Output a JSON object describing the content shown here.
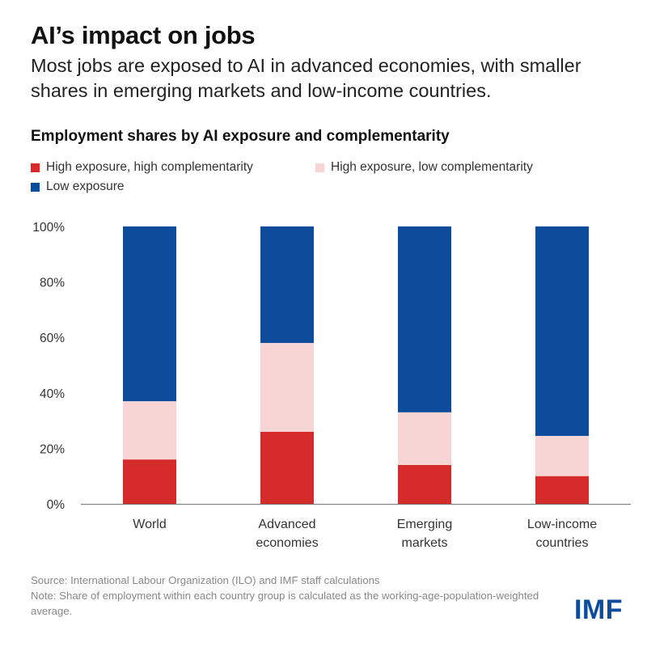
{
  "title": "AI’s impact on jobs",
  "subtitle": "Most jobs are exposed to AI in advanced economies, with smaller shares in emerging markets and low-income countries.",
  "source": "Source: International Labour Organization (ILO) and IMF staff calculations",
  "note": "Note: Share of employment within each country group is calculated as the working-age-population-weighted average.",
  "logo": "IMF",
  "chart_data": {
    "type": "bar",
    "stacked": true,
    "title": "Employment shares by AI exposure and complementarity",
    "categories": [
      [
        "World"
      ],
      [
        "Advanced",
        "economies"
      ],
      [
        "Emerging",
        "markets"
      ],
      [
        "Low-income",
        "countries"
      ]
    ],
    "series": [
      {
        "name": "High exposure, high complementarity",
        "color": "#d62b2b",
        "values": [
          16,
          26,
          14,
          10
        ]
      },
      {
        "name": "High exposure, low complementarity",
        "color": "#f7d5d5",
        "values": [
          21,
          32,
          19,
          14.5
        ]
      },
      {
        "name": "Low exposure",
        "color": "#0d4b9b",
        "values": [
          63,
          42,
          67,
          75.5
        ]
      }
    ],
    "ylim": [
      0,
      100
    ],
    "yticks": [
      "0%",
      "20%",
      "40%",
      "60%",
      "80%",
      "100%"
    ],
    "ytick_values": [
      0,
      20,
      40,
      60,
      80,
      100
    ],
    "grid": false,
    "legend_position": "top"
  }
}
